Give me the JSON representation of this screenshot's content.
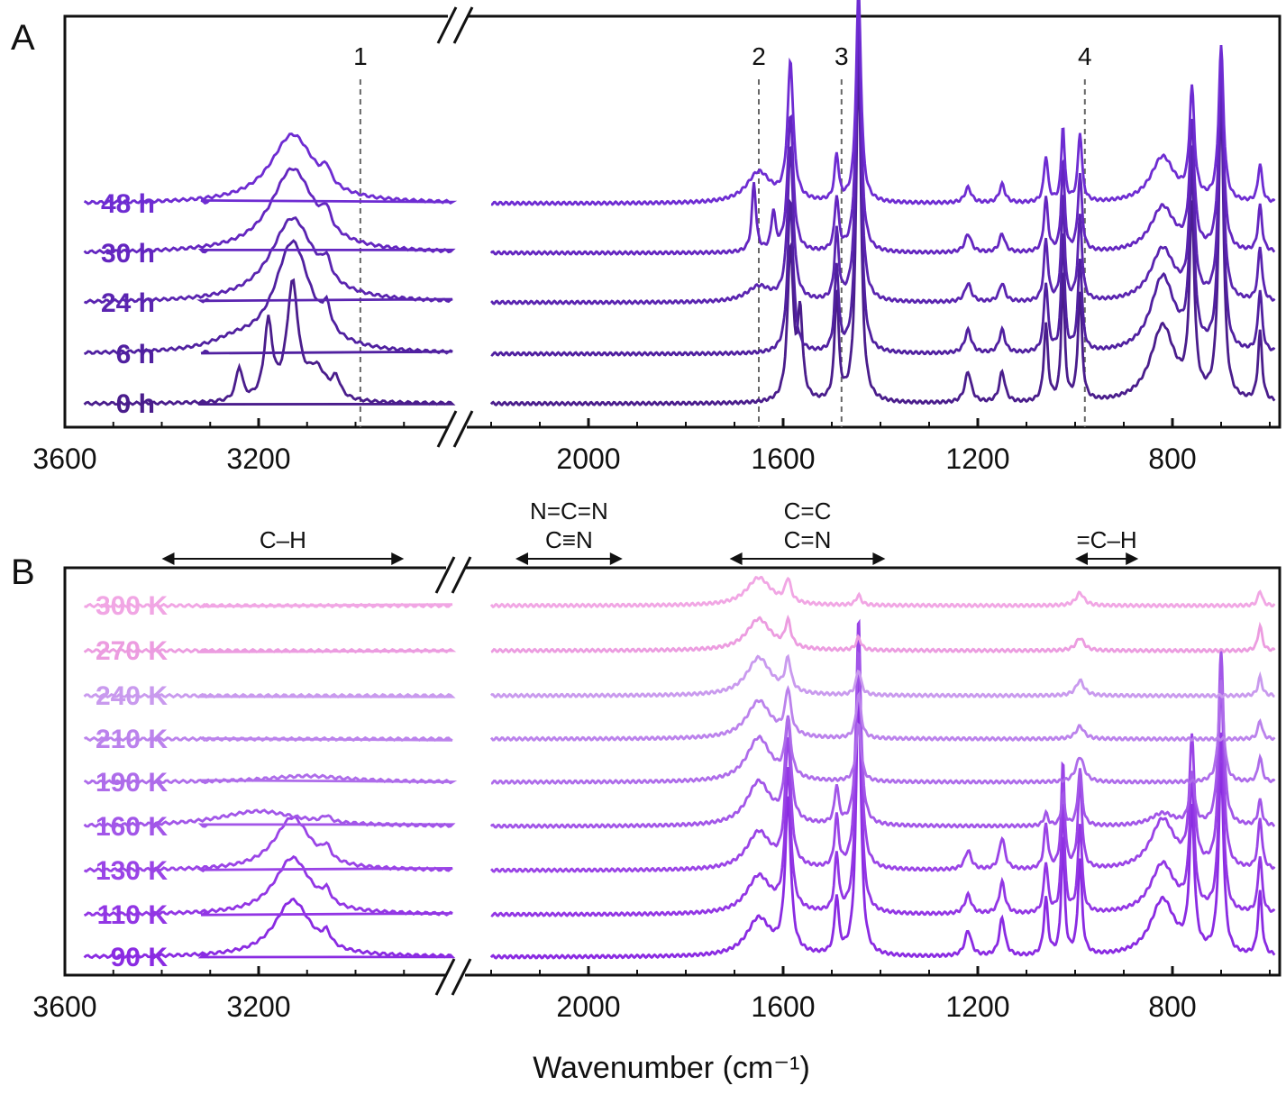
{
  "chart_data": [
    {
      "panel": "A",
      "type": "line",
      "xlabel": "",
      "xlim": [
        3600,
        600
      ],
      "axis_break": [
        2800,
        2300
      ],
      "x_ticks": [
        3600,
        3200,
        2000,
        1600,
        1200,
        800
      ],
      "marker_lines": [
        {
          "label": "1",
          "x": 2990
        },
        {
          "label": "2",
          "x": 1650
        },
        {
          "label": "3",
          "x": 1480
        },
        {
          "label": "4",
          "x": 980
        }
      ],
      "series": [
        {
          "name": "0 h",
          "color": "#4a1d8c",
          "peaks": [
            [
              3240,
              0.22,
              8
            ],
            [
              3180,
              0.5,
              10
            ],
            [
              3130,
              0.75,
              14
            ],
            [
              3080,
              0.2,
              25
            ],
            [
              3040,
              0.12,
              10
            ],
            [
              1585,
              1.0,
              7
            ],
            [
              1565,
              0.55,
              6
            ],
            [
              1490,
              0.7,
              5
            ],
            [
              1445,
              2.3,
              6
            ],
            [
              1220,
              0.2,
              8
            ],
            [
              1150,
              0.2,
              7
            ],
            [
              1060,
              0.5,
              5
            ],
            [
              1025,
              0.85,
              4
            ],
            [
              990,
              0.7,
              5
            ],
            [
              820,
              0.5,
              30
            ],
            [
              760,
              1.2,
              6
            ],
            [
              700,
              2.0,
              6
            ],
            [
              620,
              0.45,
              5
            ]
          ]
        },
        {
          "name": "6 h",
          "color": "#5020a0",
          "peaks": [
            [
              3250,
              0.06,
              60
            ],
            [
              3130,
              0.72,
              45
            ],
            [
              3060,
              0.15,
              10
            ],
            [
              1585,
              1.0,
              7
            ],
            [
              1490,
              0.55,
              5
            ],
            [
              1445,
              2.1,
              6
            ],
            [
              1220,
              0.15,
              8
            ],
            [
              1150,
              0.15,
              7
            ],
            [
              1060,
              0.45,
              5
            ],
            [
              1025,
              0.8,
              4
            ],
            [
              990,
              0.6,
              5
            ],
            [
              820,
              0.5,
              30
            ],
            [
              760,
              1.1,
              6
            ],
            [
              700,
              1.7,
              6
            ],
            [
              620,
              0.4,
              5
            ]
          ]
        },
        {
          "name": "24 h",
          "color": "#5a24b0",
          "peaks": [
            [
              3130,
              0.55,
              55
            ],
            [
              3060,
              0.12,
              10
            ],
            [
              1650,
              0.1,
              30
            ],
            [
              1585,
              1.0,
              7
            ],
            [
              1490,
              0.45,
              5
            ],
            [
              1445,
              1.9,
              6
            ],
            [
              1220,
              0.12,
              8
            ],
            [
              1150,
              0.12,
              7
            ],
            [
              1060,
              0.4,
              5
            ],
            [
              1025,
              0.7,
              4
            ],
            [
              990,
              0.55,
              5
            ],
            [
              820,
              0.35,
              30
            ],
            [
              760,
              0.95,
              6
            ],
            [
              700,
              1.4,
              6
            ],
            [
              620,
              0.35,
              5
            ]
          ]
        },
        {
          "name": "30 h",
          "color": "#6426c0",
          "peaks": [
            [
              3130,
              0.55,
              55
            ],
            [
              3060,
              0.12,
              10
            ],
            [
              1660,
              0.45,
              5
            ],
            [
              1620,
              0.25,
              5
            ],
            [
              1585,
              0.9,
              7
            ],
            [
              1490,
              0.35,
              5
            ],
            [
              1445,
              1.6,
              6
            ],
            [
              1220,
              0.12,
              8
            ],
            [
              1150,
              0.12,
              7
            ],
            [
              1060,
              0.35,
              5
            ],
            [
              1025,
              0.6,
              4
            ],
            [
              990,
              0.5,
              5
            ],
            [
              820,
              0.3,
              30
            ],
            [
              760,
              0.8,
              6
            ],
            [
              700,
              1.2,
              6
            ],
            [
              620,
              0.3,
              5
            ]
          ]
        },
        {
          "name": "48 h",
          "color": "#6e2cd2",
          "peaks": [
            [
              3130,
              0.45,
              55
            ],
            [
              3060,
              0.1,
              10
            ],
            [
              1650,
              0.2,
              30
            ],
            [
              1585,
              0.9,
              7
            ],
            [
              1490,
              0.3,
              5
            ],
            [
              1445,
              1.4,
              6
            ],
            [
              1220,
              0.1,
              8
            ],
            [
              1150,
              0.12,
              7
            ],
            [
              1060,
              0.3,
              5
            ],
            [
              1025,
              0.5,
              4
            ],
            [
              990,
              0.45,
              5
            ],
            [
              820,
              0.3,
              30
            ],
            [
              760,
              0.7,
              6
            ],
            [
              700,
              1.0,
              6
            ],
            [
              620,
              0.25,
              5
            ]
          ]
        }
      ]
    },
    {
      "panel": "B",
      "type": "line",
      "xlabel": "Wavenumber (cm⁻¹)",
      "xlim": [
        3600,
        600
      ],
      "axis_break": [
        2800,
        2300
      ],
      "x_ticks": [
        3600,
        3200,
        2000,
        1600,
        1200,
        800
      ],
      "annotations": [
        {
          "label": "C–H",
          "from": 3400,
          "to": 2900
        },
        {
          "label": "N=C=N",
          "label2": "C≡N",
          "from": 2150,
          "to": 1930
        },
        {
          "label": "C=C",
          "label2": "C=N",
          "from": 1710,
          "to": 1390
        },
        {
          "label": "=C–H",
          "from": 1000,
          "to": 870
        }
      ],
      "series": [
        {
          "name": "90 K",
          "color": "#8a2be2",
          "peaks": [
            [
              3130,
              0.45,
              45
            ],
            [
              3060,
              0.1,
              10
            ],
            [
              1650,
              0.3,
              30
            ],
            [
              1590,
              1.2,
              7
            ],
            [
              1490,
              0.45,
              5
            ],
            [
              1445,
              2.2,
              6
            ],
            [
              1220,
              0.2,
              8
            ],
            [
              1150,
              0.3,
              7
            ],
            [
              1060,
              0.45,
              5
            ],
            [
              1025,
              0.95,
              4
            ],
            [
              990,
              0.75,
              5
            ],
            [
              820,
              0.45,
              30
            ],
            [
              760,
              1.1,
              6
            ],
            [
              700,
              1.5,
              6
            ],
            [
              620,
              0.5,
              5
            ]
          ]
        },
        {
          "name": "110 K",
          "color": "#9236e4",
          "peaks": [
            [
              3130,
              0.45,
              45
            ],
            [
              3060,
              0.1,
              10
            ],
            [
              1650,
              0.3,
              30
            ],
            [
              1590,
              1.1,
              7
            ],
            [
              1490,
              0.45,
              5
            ],
            [
              1445,
              2.1,
              6
            ],
            [
              1220,
              0.15,
              8
            ],
            [
              1150,
              0.25,
              7
            ],
            [
              1060,
              0.4,
              5
            ],
            [
              1025,
              0.9,
              4
            ],
            [
              990,
              0.7,
              5
            ],
            [
              820,
              0.4,
              30
            ],
            [
              760,
              1.0,
              6
            ],
            [
              700,
              1.4,
              6
            ],
            [
              620,
              0.45,
              5
            ]
          ]
        },
        {
          "name": "130 K",
          "color": "#9a44e6",
          "peaks": [
            [
              3130,
              0.42,
              45
            ],
            [
              3060,
              0.1,
              10
            ],
            [
              1650,
              0.3,
              30
            ],
            [
              1590,
              1.0,
              7
            ],
            [
              1490,
              0.4,
              5
            ],
            [
              1445,
              2.0,
              6
            ],
            [
              1220,
              0.15,
              8
            ],
            [
              1150,
              0.25,
              7
            ],
            [
              1060,
              0.35,
              5
            ],
            [
              1025,
              0.85,
              4
            ],
            [
              990,
              0.7,
              5
            ],
            [
              820,
              0.4,
              30
            ],
            [
              760,
              1.0,
              6
            ],
            [
              700,
              1.5,
              6
            ],
            [
              620,
              0.4,
              5
            ]
          ]
        },
        {
          "name": "160 K",
          "color": "#a256e8",
          "peaks": [
            [
              3200,
              0.12,
              100
            ],
            [
              3060,
              0.05,
              10
            ],
            [
              1650,
              0.35,
              30
            ],
            [
              1590,
              0.8,
              7
            ],
            [
              1490,
              0.3,
              5
            ],
            [
              1445,
              1.4,
              6
            ],
            [
              1060,
              0.1,
              5
            ],
            [
              1025,
              0.25,
              4
            ],
            [
              990,
              0.45,
              5
            ],
            [
              820,
              0.1,
              30
            ],
            [
              760,
              0.4,
              6
            ],
            [
              700,
              1.4,
              6
            ],
            [
              620,
              0.2,
              5
            ]
          ]
        },
        {
          "name": "190 K",
          "color": "#ae6cea",
          "peaks": [
            [
              3100,
              0.05,
              100
            ],
            [
              1650,
              0.35,
              30
            ],
            [
              1590,
              0.45,
              7
            ],
            [
              1445,
              0.45,
              6
            ],
            [
              990,
              0.2,
              10
            ],
            [
              700,
              0.8,
              6
            ],
            [
              620,
              0.2,
              5
            ]
          ]
        },
        {
          "name": "210 K",
          "color": "#bb82ec",
          "peaks": [
            [
              1650,
              0.3,
              30
            ],
            [
              1590,
              0.35,
              7
            ],
            [
              1445,
              0.35,
              6
            ],
            [
              990,
              0.1,
              10
            ],
            [
              620,
              0.15,
              5
            ]
          ]
        },
        {
          "name": "240 K",
          "color": "#c99aee",
          "peaks": [
            [
              1650,
              0.3,
              30
            ],
            [
              1590,
              0.25,
              7
            ],
            [
              1445,
              0.2,
              6
            ],
            [
              990,
              0.12,
              10
            ],
            [
              620,
              0.15,
              5
            ]
          ]
        },
        {
          "name": "270 K",
          "color": "#ec9ce0",
          "peaks": [
            [
              1650,
              0.25,
              30
            ],
            [
              1590,
              0.2,
              7
            ],
            [
              1445,
              0.1,
              6
            ],
            [
              990,
              0.1,
              10
            ],
            [
              620,
              0.2,
              5
            ]
          ]
        },
        {
          "name": "300 K",
          "color": "#f1a6e4",
          "peaks": [
            [
              1650,
              0.22,
              30
            ],
            [
              1590,
              0.18,
              7
            ],
            [
              1445,
              0.08,
              6
            ],
            [
              990,
              0.1,
              10
            ],
            [
              620,
              0.12,
              5
            ]
          ]
        }
      ]
    }
  ]
}
